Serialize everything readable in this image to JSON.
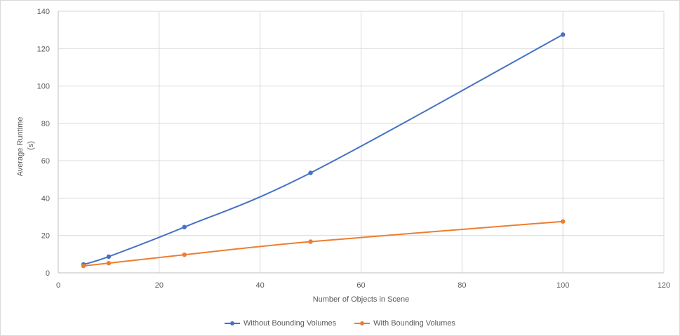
{
  "chart_data": {
    "type": "line",
    "title": "",
    "xlabel": "Number  of Objects in Scene",
    "ylabel_lines": [
      "Average  Runtime",
      "(s)"
    ],
    "xlim": [
      0,
      120
    ],
    "ylim": [
      0,
      140
    ],
    "xticks": [
      0,
      20,
      40,
      60,
      80,
      100,
      120
    ],
    "yticks": [
      0,
      20,
      40,
      60,
      80,
      100,
      120,
      140
    ],
    "grid": true,
    "legend_position": "bottom",
    "series": [
      {
        "name": "Without Bounding Volumes",
        "color": "#4472c4",
        "x": [
          5,
          10,
          25,
          50,
          100
        ],
        "y": [
          4.5,
          8.7,
          24.5,
          53.5,
          127.5
        ]
      },
      {
        "name": "With Bounding Volumes",
        "color": "#ed7d31",
        "x": [
          5,
          10,
          25,
          50,
          100
        ],
        "y": [
          3.7,
          5.2,
          9.7,
          16.7,
          27.5
        ]
      }
    ]
  }
}
